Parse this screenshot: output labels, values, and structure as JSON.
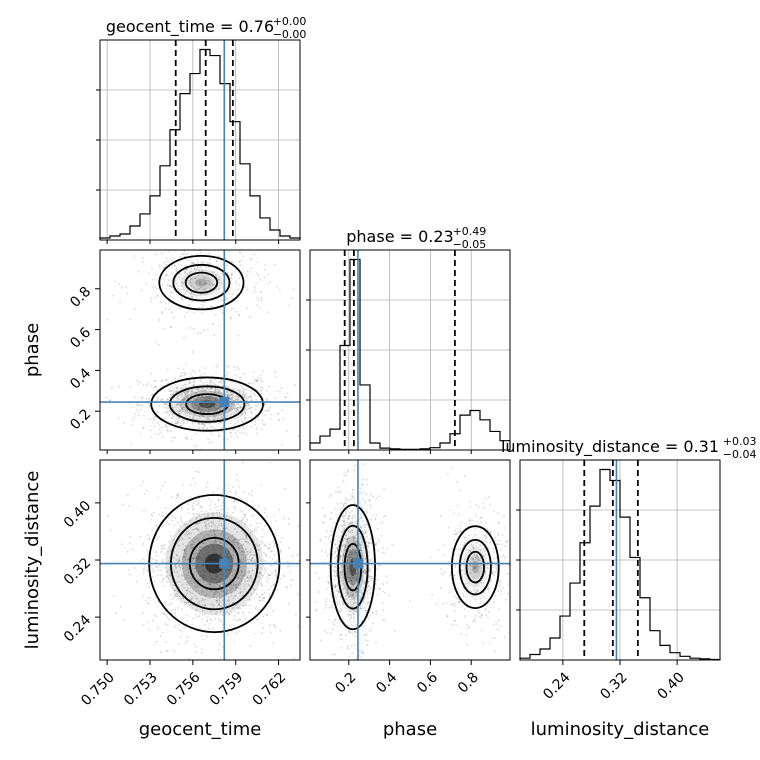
{
  "chart_data": {
    "type": "corner",
    "grid": true,
    "parameters": [
      {
        "name": "geocent_time",
        "label": "geocent_time",
        "range": [
          0.7495,
          0.7635
        ],
        "ticks": [
          0.75,
          0.753,
          0.756,
          0.759,
          0.762
        ],
        "tick_labels": [
          "0.750",
          "0.753",
          "0.756",
          "0.759",
          "0.762"
        ],
        "truth": 0.7582,
        "title": {
          "text": "geocent_time = 0.76",
          "plus": "+0.00",
          "minus": "−0.00"
        },
        "quantiles": [
          0.7548,
          0.7569,
          0.7588
        ]
      },
      {
        "name": "phase",
        "label": "phase",
        "range": [
          0.01,
          0.99
        ],
        "ticks": [
          0.2,
          0.4,
          0.6,
          0.8
        ],
        "tick_labels": [
          "0.2",
          "0.4",
          "0.6",
          "0.8"
        ],
        "truth": 0.245,
        "title": {
          "text": "phase = 0.23",
          "plus": "+0.49",
          "minus": "−0.05"
        },
        "quantiles": [
          0.18,
          0.225,
          0.72
        ]
      },
      {
        "name": "luminosity_distance",
        "label": "luminosity_distance",
        "range": [
          0.18,
          0.46
        ],
        "ticks": [
          0.24,
          0.32,
          0.4
        ],
        "tick_labels": [
          "0.24",
          "0.32",
          "0.40"
        ],
        "truth": 0.315,
        "title": {
          "text": "luminosity_distance = 0.31",
          "plus": "+0.03",
          "minus": "−0.04"
        },
        "quantiles": [
          0.27,
          0.31,
          0.345
        ]
      }
    ],
    "histograms": [
      {
        "param": "geocent_time",
        "bin_edges_range": [
          0.7495,
          0.7635
        ],
        "bins": 20,
        "counts": [
          1,
          2,
          3,
          7,
          13,
          22,
          37,
          55,
          73,
          83,
          95,
          92,
          78,
          59,
          38,
          22,
          11,
          5,
          2,
          1
        ]
      },
      {
        "param": "phase",
        "bin_edges_range": [
          0.01,
          0.99
        ],
        "bins": 20,
        "counts": [
          3,
          6,
          9,
          45,
          82,
          28,
          3,
          0.8,
          0.5,
          0.3,
          0.3,
          0.5,
          1,
          3,
          7,
          15,
          17,
          13,
          8,
          4
        ]
      },
      {
        "param": "luminosity_distance",
        "bin_edges_range": [
          0.18,
          0.46
        ],
        "bins": 20,
        "counts": [
          1,
          3,
          6,
          12,
          24,
          42,
          64,
          84,
          104,
          98,
          78,
          56,
          34,
          16,
          8,
          4,
          2,
          1,
          0.6,
          0.3
        ]
      }
    ],
    "joint": [
      {
        "x": "geocent_time",
        "y": "phase",
        "modes": [
          {
            "cx": 0.757,
            "cy": 0.235,
            "sx": 0.0018,
            "sy": 0.06,
            "weight": 0.72
          },
          {
            "cx": 0.7566,
            "cy": 0.83,
            "sx": 0.0018,
            "sy": 0.08,
            "weight": 0.28
          }
        ]
      },
      {
        "x": "geocent_time",
        "y": "luminosity_distance",
        "modes": [
          {
            "cx": 0.7575,
            "cy": 0.315,
            "sx": 0.0019,
            "sy": 0.04,
            "weight": 1.0
          }
        ]
      },
      {
        "x": "phase",
        "y": "luminosity_distance",
        "modes": [
          {
            "cx": 0.22,
            "cy": 0.31,
            "sx": 0.05,
            "sy": 0.04,
            "weight": 0.72
          },
          {
            "cx": 0.82,
            "cy": 0.31,
            "sx": 0.07,
            "sy": 0.035,
            "weight": 0.28
          }
        ]
      }
    ],
    "colors": {
      "truth": "#4682b4",
      "hist": "#000000",
      "quantile": "#000000",
      "grid": "#b0b0b0",
      "scatter": "#555555"
    }
  }
}
